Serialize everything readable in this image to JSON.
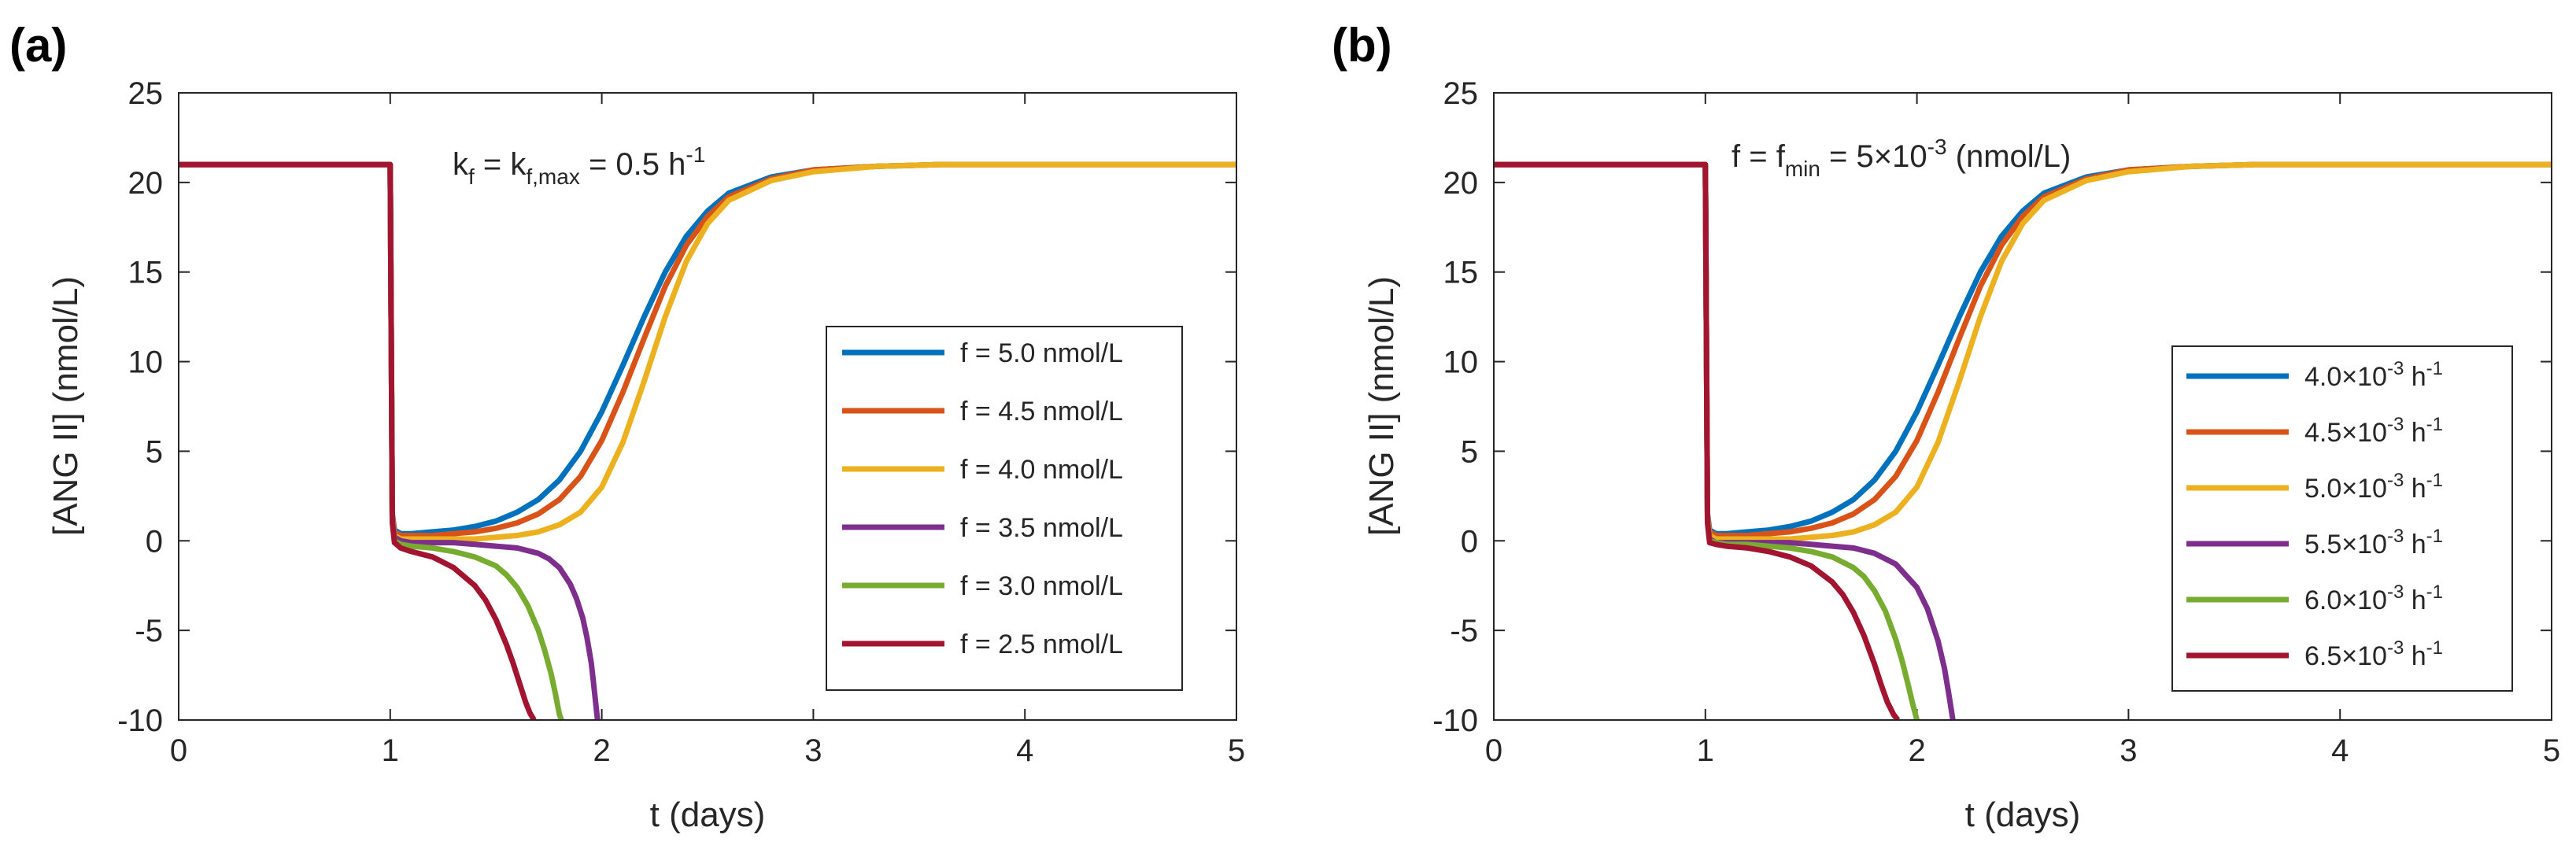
{
  "chart_data": [
    {
      "type": "line",
      "panel_label": "(a)",
      "title": "",
      "xlabel": "t (days)",
      "ylabel": "[ANG II] (nmol/L)",
      "xlim": [
        0,
        5
      ],
      "ylim": [
        -10,
        25
      ],
      "xticks": [
        "0",
        "1",
        "2",
        "3",
        "4",
        "5"
      ],
      "yticks": [
        "25",
        "20",
        "15",
        "10",
        "5",
        "0",
        "-5",
        "-10"
      ],
      "grid": false,
      "legend_position": "right",
      "annotation": {
        "base": "k",
        "sub1": "f",
        "mid": " = k",
        "sub2": "f,max",
        "tail": " = 0.5 h",
        "sup": "-1"
      },
      "series": [
        {
          "name": "f = 5.0 nmol/L",
          "color": "#0072BD",
          "legend": {
            "text": "f = 5.0 nmol/L"
          },
          "x": [
            0,
            1,
            1.01,
            1.02,
            1.05,
            1.1,
            1.2,
            1.3,
            1.4,
            1.5,
            1.6,
            1.7,
            1.8,
            1.9,
            2.0,
            2.1,
            2.2,
            2.3,
            2.4,
            2.5,
            2.6,
            2.8,
            3.0,
            3.3,
            3.6,
            4.0,
            4.5,
            5.0
          ],
          "y": [
            21,
            21,
            1.5,
            0.6,
            0.4,
            0.4,
            0.5,
            0.6,
            0.8,
            1.1,
            1.6,
            2.3,
            3.4,
            5.0,
            7.2,
            9.8,
            12.5,
            15.0,
            17.0,
            18.4,
            19.4,
            20.3,
            20.7,
            20.9,
            21.0,
            21.0,
            21.0,
            21.0
          ]
        },
        {
          "name": "f = 4.5 nmol/L",
          "color": "#D95319",
          "legend": {
            "text": "f = 4.5 nmol/L"
          },
          "x": [
            0,
            1,
            1.01,
            1.02,
            1.05,
            1.1,
            1.2,
            1.3,
            1.4,
            1.5,
            1.6,
            1.7,
            1.8,
            1.9,
            2.0,
            2.1,
            2.2,
            2.3,
            2.4,
            2.5,
            2.6,
            2.8,
            3.0,
            3.3,
            3.6,
            4.0,
            4.5,
            5.0
          ],
          "y": [
            21,
            21,
            1.4,
            0.5,
            0.3,
            0.3,
            0.3,
            0.4,
            0.5,
            0.7,
            1.0,
            1.5,
            2.3,
            3.6,
            5.6,
            8.3,
            11.3,
            14.2,
            16.5,
            18.1,
            19.2,
            20.2,
            20.7,
            20.9,
            21.0,
            21.0,
            21.0,
            21.0
          ]
        },
        {
          "name": "f = 4.0 nmol/L",
          "color": "#EDB120",
          "legend": {
            "text": "f = 4.0 nmol/L"
          },
          "x": [
            0,
            1,
            1.01,
            1.02,
            1.05,
            1.1,
            1.2,
            1.3,
            1.4,
            1.5,
            1.6,
            1.7,
            1.8,
            1.9,
            2.0,
            2.1,
            2.2,
            2.3,
            2.4,
            2.5,
            2.6,
            2.8,
            3.0,
            3.3,
            3.6,
            4.0,
            4.5,
            5.0
          ],
          "y": [
            21,
            21,
            1.3,
            0.3,
            0.1,
            0.1,
            0.1,
            0.1,
            0.1,
            0.2,
            0.3,
            0.5,
            0.9,
            1.6,
            3.0,
            5.5,
            8.9,
            12.5,
            15.6,
            17.7,
            19.0,
            20.1,
            20.6,
            20.9,
            21.0,
            21.0,
            21.0,
            21.0
          ]
        },
        {
          "name": "f = 3.5 nmol/L",
          "color": "#7E2F8E",
          "legend": {
            "text": "f = 3.5 nmol/L"
          },
          "x": [
            0,
            1,
            1.01,
            1.02,
            1.05,
            1.1,
            1.2,
            1.3,
            1.4,
            1.5,
            1.6,
            1.7,
            1.75,
            1.8,
            1.85,
            1.88,
            1.91,
            1.93,
            1.95,
            1.96,
            1.97,
            1.98
          ],
          "y": [
            21,
            21,
            1.2,
            0.2,
            0.0,
            -0.1,
            -0.1,
            -0.1,
            -0.2,
            -0.3,
            -0.4,
            -0.7,
            -1.0,
            -1.5,
            -2.4,
            -3.2,
            -4.3,
            -5.4,
            -6.8,
            -7.8,
            -8.9,
            -10.0
          ]
        },
        {
          "name": "f = 3.0 nmol/L",
          "color": "#77AC30",
          "legend": {
            "text": "f = 3.0 nmol/L"
          },
          "x": [
            0,
            1,
            1.01,
            1.02,
            1.05,
            1.1,
            1.2,
            1.3,
            1.4,
            1.5,
            1.55,
            1.6,
            1.65,
            1.7,
            1.73,
            1.76,
            1.78,
            1.8,
            1.81
          ],
          "y": [
            21,
            21,
            1.1,
            0.0,
            -0.2,
            -0.3,
            -0.4,
            -0.6,
            -0.9,
            -1.4,
            -1.9,
            -2.6,
            -3.6,
            -5.0,
            -6.1,
            -7.4,
            -8.5,
            -9.7,
            -10.0
          ]
        },
        {
          "name": "f = 2.5 nmol/L",
          "color": "#A2142F",
          "legend": {
            "text": "f = 2.5 nmol/L"
          },
          "x": [
            0,
            1,
            1.01,
            1.02,
            1.05,
            1.1,
            1.2,
            1.3,
            1.4,
            1.45,
            1.5,
            1.55,
            1.58,
            1.61,
            1.64,
            1.66,
            1.68
          ],
          "y": [
            21,
            21,
            1.0,
            -0.1,
            -0.4,
            -0.6,
            -0.9,
            -1.5,
            -2.5,
            -3.3,
            -4.4,
            -5.8,
            -6.8,
            -7.9,
            -9.0,
            -9.6,
            -10.0
          ]
        }
      ]
    },
    {
      "type": "line",
      "panel_label": "(b)",
      "title": "",
      "xlabel": "t (days)",
      "ylabel": "[ANG II] (nmol/L)",
      "xlim": [
        0,
        5
      ],
      "ylim": [
        -10,
        25
      ],
      "xticks": [
        "0",
        "1",
        "2",
        "3",
        "4",
        "5"
      ],
      "yticks": [
        "25",
        "20",
        "15",
        "10",
        "5",
        "0",
        "-5",
        "-10"
      ],
      "grid": false,
      "legend_position": "right",
      "annotation": {
        "lead": "f = f",
        "sub": "min",
        "tail": " = 5×10",
        "sup": "-3",
        "end": " (nmol/L)"
      },
      "series": [
        {
          "name": "4.0×10^-3 h^-1",
          "color": "#0072BD",
          "legend": {
            "mant": "4.0×10",
            "exp": "-3",
            "unit": " h",
            "unit_exp": "-1"
          },
          "x": [
            0,
            1,
            1.01,
            1.02,
            1.05,
            1.1,
            1.2,
            1.3,
            1.4,
            1.5,
            1.6,
            1.7,
            1.8,
            1.9,
            2.0,
            2.1,
            2.2,
            2.3,
            2.4,
            2.5,
            2.6,
            2.8,
            3.0,
            3.3,
            3.6,
            4.0,
            4.5,
            5.0
          ],
          "y": [
            21,
            21,
            1.5,
            0.6,
            0.4,
            0.4,
            0.5,
            0.6,
            0.8,
            1.1,
            1.6,
            2.3,
            3.4,
            5.0,
            7.2,
            9.8,
            12.5,
            15.0,
            17.0,
            18.4,
            19.4,
            20.3,
            20.7,
            20.9,
            21.0,
            21.0,
            21.0,
            21.0
          ]
        },
        {
          "name": "4.5×10^-3 h^-1",
          "color": "#D95319",
          "legend": {
            "mant": "4.5×10",
            "exp": "-3",
            "unit": " h",
            "unit_exp": "-1"
          },
          "x": [
            0,
            1,
            1.01,
            1.02,
            1.05,
            1.1,
            1.2,
            1.3,
            1.4,
            1.5,
            1.6,
            1.7,
            1.8,
            1.9,
            2.0,
            2.1,
            2.2,
            2.3,
            2.4,
            2.5,
            2.6,
            2.8,
            3.0,
            3.3,
            3.6,
            4.0,
            4.5,
            5.0
          ],
          "y": [
            21,
            21,
            1.4,
            0.5,
            0.3,
            0.3,
            0.3,
            0.4,
            0.5,
            0.7,
            1.0,
            1.5,
            2.3,
            3.6,
            5.6,
            8.3,
            11.3,
            14.2,
            16.5,
            18.1,
            19.2,
            20.2,
            20.7,
            20.9,
            21.0,
            21.0,
            21.0,
            21.0
          ]
        },
        {
          "name": "5.0×10^-3 h^-1",
          "color": "#EDB120",
          "legend": {
            "mant": "5.0×10",
            "exp": "-3",
            "unit": " h",
            "unit_exp": "-1"
          },
          "x": [
            0,
            1,
            1.01,
            1.02,
            1.05,
            1.1,
            1.2,
            1.3,
            1.4,
            1.5,
            1.6,
            1.7,
            1.8,
            1.9,
            2.0,
            2.1,
            2.2,
            2.3,
            2.4,
            2.5,
            2.6,
            2.8,
            3.0,
            3.3,
            3.6,
            4.0,
            4.5,
            5.0
          ],
          "y": [
            21,
            21,
            1.3,
            0.3,
            0.1,
            0.1,
            0.1,
            0.1,
            0.1,
            0.2,
            0.3,
            0.5,
            0.9,
            1.6,
            3.0,
            5.5,
            8.9,
            12.5,
            15.6,
            17.7,
            19.0,
            20.1,
            20.6,
            20.9,
            21.0,
            21.0,
            21.0,
            21.0
          ]
        },
        {
          "name": "5.5×10^-3 h^-1",
          "color": "#7E2F8E",
          "legend": {
            "mant": "5.5×10",
            "exp": "-3",
            "unit": " h",
            "unit_exp": "-1"
          },
          "x": [
            0,
            1,
            1.01,
            1.02,
            1.05,
            1.1,
            1.2,
            1.3,
            1.4,
            1.5,
            1.6,
            1.7,
            1.8,
            1.9,
            2.0,
            2.05,
            2.1,
            2.13,
            2.15,
            2.17
          ],
          "y": [
            21,
            21,
            1.2,
            0.1,
            -0.1,
            -0.1,
            -0.1,
            -0.1,
            -0.1,
            -0.2,
            -0.3,
            -0.4,
            -0.7,
            -1.3,
            -2.6,
            -3.8,
            -5.6,
            -7.1,
            -8.5,
            -10.0
          ]
        },
        {
          "name": "6.0×10^-3 h^-1",
          "color": "#77AC30",
          "legend": {
            "mant": "6.0×10",
            "exp": "-3",
            "unit": " h",
            "unit_exp": "-1"
          },
          "x": [
            0,
            1,
            1.01,
            1.02,
            1.05,
            1.1,
            1.2,
            1.3,
            1.4,
            1.5,
            1.6,
            1.7,
            1.75,
            1.8,
            1.85,
            1.9,
            1.93,
            1.96,
            1.98,
            2.0
          ],
          "y": [
            21,
            21,
            1.1,
            0.0,
            -0.1,
            -0.2,
            -0.2,
            -0.3,
            -0.4,
            -0.6,
            -0.9,
            -1.5,
            -2.0,
            -2.8,
            -3.9,
            -5.5,
            -6.7,
            -8.1,
            -9.1,
            -10.0
          ]
        },
        {
          "name": "6.5×10^-3 h^-1",
          "color": "#A2142F",
          "legend": {
            "mant": "6.5×10",
            "exp": "-3",
            "unit": " h",
            "unit_exp": "-1"
          },
          "x": [
            0,
            1,
            1.01,
            1.02,
            1.05,
            1.1,
            1.2,
            1.3,
            1.4,
            1.5,
            1.6,
            1.65,
            1.7,
            1.75,
            1.8,
            1.83,
            1.86,
            1.89,
            1.91
          ],
          "y": [
            21,
            21,
            1.0,
            -0.1,
            -0.2,
            -0.3,
            -0.4,
            -0.6,
            -0.9,
            -1.4,
            -2.3,
            -3.0,
            -4.0,
            -5.3,
            -6.9,
            -8.0,
            -9.0,
            -9.7,
            -10.0
          ]
        }
      ]
    }
  ]
}
